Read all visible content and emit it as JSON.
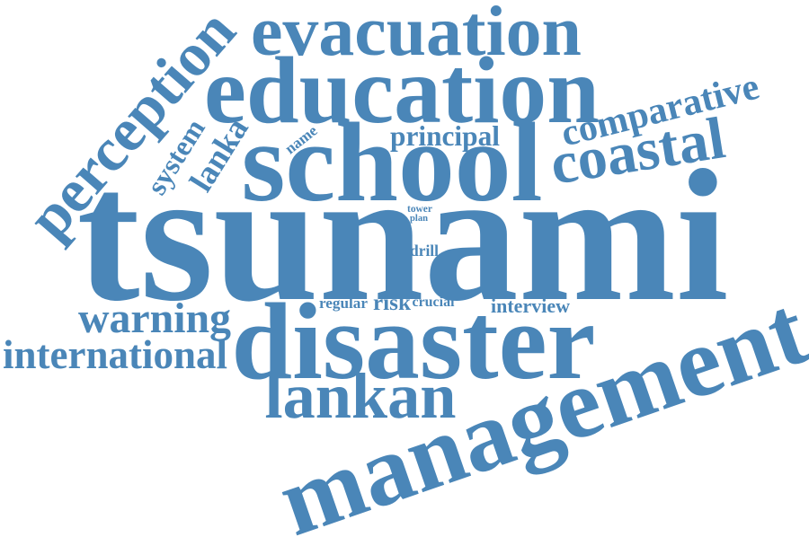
{
  "color": "#4a86b8",
  "words": [
    {
      "id": "tsunami",
      "text": "tsunami"
    },
    {
      "id": "disaster",
      "text": "disaster"
    },
    {
      "id": "management",
      "text": "management"
    },
    {
      "id": "school",
      "text": "school"
    },
    {
      "id": "education",
      "text": "education"
    },
    {
      "id": "evacuation",
      "text": "evacuation"
    },
    {
      "id": "perception",
      "text": "perception"
    },
    {
      "id": "coastal",
      "text": "coastal"
    },
    {
      "id": "comparative",
      "text": "comparative"
    },
    {
      "id": "lankan",
      "text": "lankan"
    },
    {
      "id": "international",
      "text": "international"
    },
    {
      "id": "warning",
      "text": "warning"
    },
    {
      "id": "lanka",
      "text": "lanka"
    },
    {
      "id": "principal",
      "text": "principal"
    },
    {
      "id": "system",
      "text": "system"
    },
    {
      "id": "interview",
      "text": "interview"
    },
    {
      "id": "risk",
      "text": "risk"
    },
    {
      "id": "regular",
      "text": "regular"
    },
    {
      "id": "crucial",
      "text": "crucial"
    },
    {
      "id": "drill",
      "text": "drill"
    },
    {
      "id": "name",
      "text": "name"
    },
    {
      "id": "tower",
      "text": "tower"
    },
    {
      "id": "plan",
      "text": "plan"
    }
  ]
}
